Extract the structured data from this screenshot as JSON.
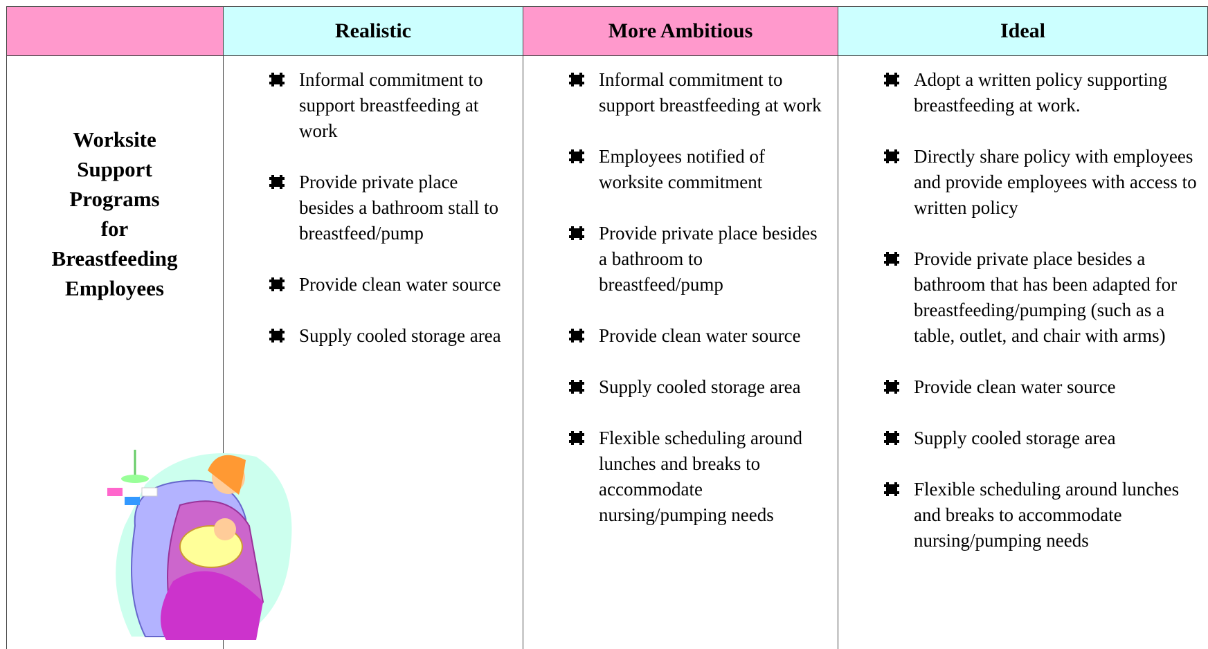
{
  "header": {
    "columns": [
      "Realistic",
      "More Ambitious",
      "Ideal"
    ]
  },
  "row_label": [
    "Worksite",
    "Support",
    "Programs",
    "for",
    "Breastfeeding",
    "Employees"
  ],
  "columns": [
    {
      "items": [
        "Informal commitment to support breastfeeding at work",
        "Provide private place besides a bathroom stall to breastfeed/pump",
        "Provide clean water source",
        "Supply cooled storage area"
      ]
    },
    {
      "items": [
        "Informal commitment to support breastfeeding at work",
        "Employees notified of worksite commitment",
        "Provide private place besides a bathroom to breastfeed/pump",
        "Provide clean water source",
        "Supply cooled storage area",
        "Flexible scheduling around lunches and breaks to accommodate nursing/pumping needs"
      ]
    },
    {
      "items": [
        "Adopt a written policy supporting breastfeeding at work.",
        "Directly share policy with employees and provide employees with access to written policy",
        "Provide private place besides a bathroom that has been adapted for breastfeeding/pumping (such as a table, outlet, and chair with arms)",
        "Provide clean water source",
        "Supply cooled storage area",
        "Flexible scheduling around lunches and breaks to accommodate nursing/pumping needs"
      ]
    }
  ]
}
